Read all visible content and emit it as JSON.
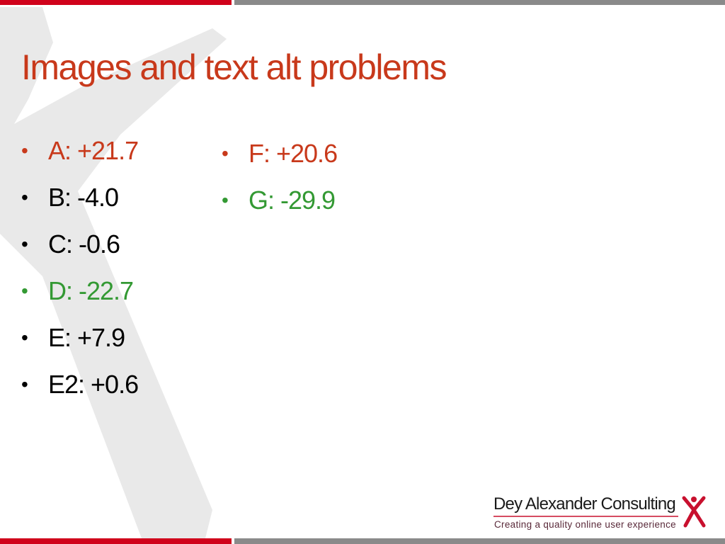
{
  "title": "Images and text alt problems",
  "left_list": [
    {
      "text": "A: +21.7",
      "color": "#c8391b"
    },
    {
      "text": "B: -4.0",
      "color": "#000000"
    },
    {
      "text": "C: -0.6",
      "color": "#000000"
    },
    {
      "text": "D: -22.7",
      "color": "#339933"
    },
    {
      "text": "E: +7.9",
      "color": "#000000"
    },
    {
      "text": "E2: +0.6",
      "color": "#000000"
    }
  ],
  "right_list": [
    {
      "text": "F: +20.6",
      "color": "#c8391b"
    },
    {
      "text": "G: -29.9",
      "color": "#339933"
    }
  ],
  "logo": {
    "name": "Dey Alexander Consulting",
    "tagline": "Creating a quality online user experience"
  }
}
